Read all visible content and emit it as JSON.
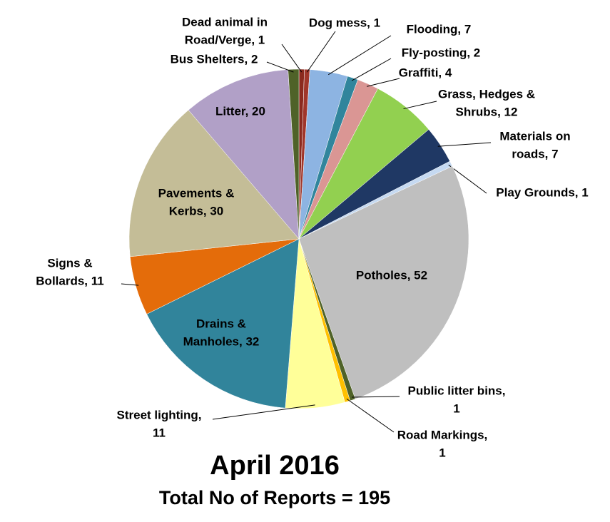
{
  "chart_data": {
    "type": "pie",
    "title": "April 2016",
    "subtitle": "Total No of Reports = 195",
    "values": [
      1,
      1,
      7,
      2,
      4,
      12,
      7,
      1,
      52,
      1,
      1,
      11,
      32,
      11,
      30,
      20,
      2
    ],
    "value_labels": [
      [
        "Dead animal in",
        "Road/Verge, 1"
      ],
      [
        "Dog mess, 1"
      ],
      [
        "Flooding, 7"
      ],
      [
        "Fly-posting, 2"
      ],
      [
        "Graffiti, 4"
      ],
      [
        "Grass, Hedges &",
        "Shrubs, 12"
      ],
      [
        "Materials on",
        "roads, 7"
      ],
      [
        "Play Grounds, 1"
      ],
      [
        "Potholes, 52"
      ],
      [
        "Public litter bins,",
        "1"
      ],
      [
        "Road Markings,",
        "1"
      ],
      [
        "Street lighting,",
        "11"
      ],
      [
        "Drains &",
        "Manholes, 32"
      ],
      [
        "Signs &",
        "Bollards, 11"
      ],
      [
        "Pavements &",
        "Kerbs, 30"
      ],
      [
        "Litter, 20"
      ],
      [
        "Bus Shelters, 2"
      ]
    ],
    "colors": [
      "#8b2a1e",
      "#a0362a",
      "#8db4e2",
      "#31859c",
      "#da9694",
      "#92d050",
      "#1f3864",
      "#c5d9f1",
      "#bfbfbf",
      "#4f6228",
      "#ffc000",
      "#ffff99",
      "#31849b",
      "#e46c0a",
      "#c4bd97",
      "#b1a0c7",
      "#4f6228"
    ]
  }
}
